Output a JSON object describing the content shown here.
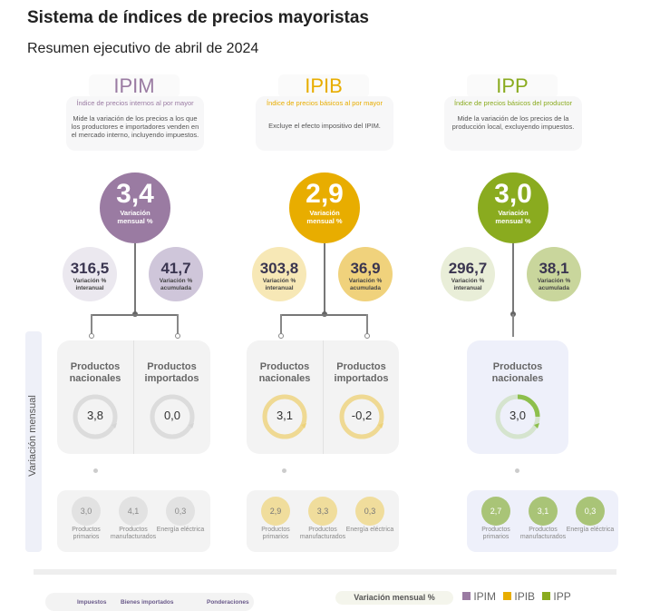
{
  "title": "Sistema de índices de precios mayoristas",
  "subtitle": "Resumen ejecutivo de abril de 2024",
  "side_label": "Variación mensual",
  "colors": {
    "ipim": "#9a7ba2",
    "ipib": "#e8ad00",
    "ipp": "#8aab1f"
  },
  "indices": [
    {
      "name": "IPIM",
      "full": "Índice de precios internos al por mayor",
      "desc": "Mide la variación de los precios a los que los productores e importadores venden en el mercado interno, incluyendo impuestos.",
      "monthly": "3,4",
      "monthly_label": "Variación mensual %",
      "interanual": "316,5",
      "interanual_label": "Variación % interanual",
      "acumulada": "41,7",
      "acumulada_label": "Variación % acumulada",
      "products": [
        {
          "label": "Productos nacionales",
          "value": "3,8"
        },
        {
          "label": "Productos importados",
          "value": "0,0"
        }
      ],
      "breakdown": [
        {
          "value": "3,0",
          "label": "Productos primarios"
        },
        {
          "value": "4,1",
          "label": "Productos manufacturados"
        },
        {
          "value": "0,3",
          "label": "Energía eléctrica"
        }
      ]
    },
    {
      "name": "IPIB",
      "full": "Índice de precios básicos al por mayor",
      "desc": "Excluye el efecto impositivo del IPIM.",
      "monthly": "2,9",
      "monthly_label": "Variación mensual %",
      "interanual": "303,8",
      "interanual_label": "Variación % interanual",
      "acumulada": "36,9",
      "acumulada_label": "Variación % acumulada",
      "products": [
        {
          "label": "Productos nacionales",
          "value": "3,1"
        },
        {
          "label": "Productos importados",
          "value": "-0,2"
        }
      ],
      "breakdown": [
        {
          "value": "2,9",
          "label": "Productos primarios"
        },
        {
          "value": "3,3",
          "label": "Productos manufacturados"
        },
        {
          "value": "0,3",
          "label": "Energía eléctrica"
        }
      ]
    },
    {
      "name": "IPP",
      "full": "Índice de precios básicos del productor",
      "desc": "Mide la variación de los precios de la producción local, excluyendo impuestos.",
      "monthly": "3,0",
      "monthly_label": "Variación mensual %",
      "interanual": "296,7",
      "interanual_label": "Variación % interanual",
      "acumulada": "38,1",
      "acumulada_label": "Variación % acumulada",
      "products": [
        {
          "label": "Productos nacionales",
          "value": "3,0"
        }
      ],
      "breakdown": [
        {
          "value": "2,7",
          "label": "Productos primarios"
        },
        {
          "value": "3,1",
          "label": "Productos manufacturados"
        },
        {
          "value": "0,3",
          "label": "Energía eléctrica"
        }
      ]
    }
  ],
  "footer": {
    "tabs": [
      "Impuestos",
      "Bienes importados",
      "Ponderaciones"
    ],
    "legend_title": "Variación mensual %",
    "legend": [
      "IPIM",
      "IPIB",
      "IPP"
    ]
  }
}
